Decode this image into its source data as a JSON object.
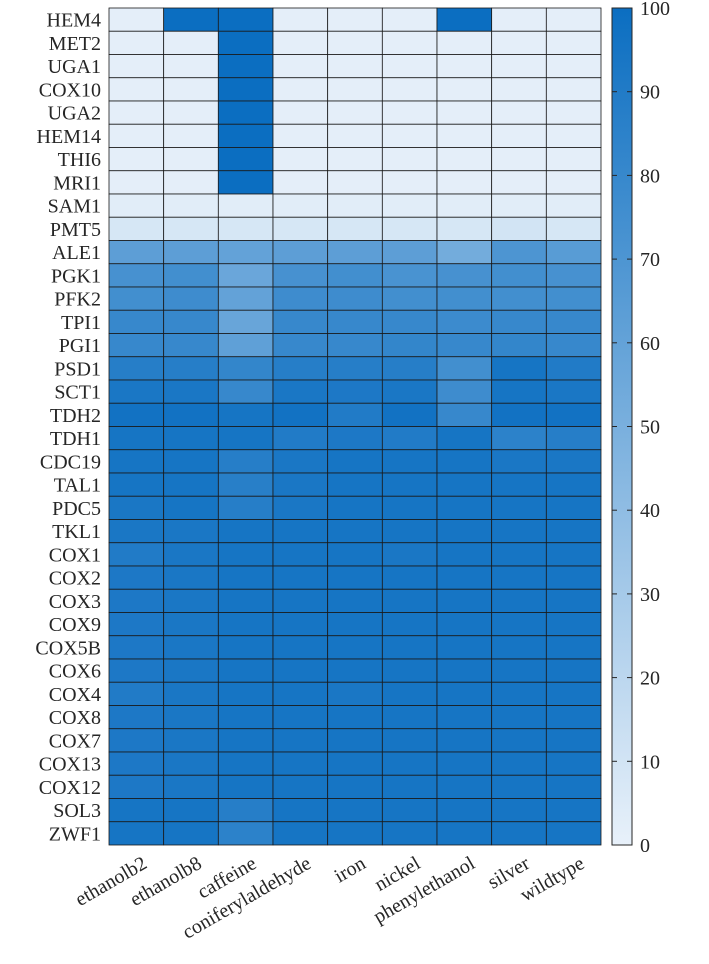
{
  "chart_data": {
    "type": "heatmap",
    "title": "",
    "xlabel": "",
    "ylabel": "",
    "columns": [
      "ethanolb2",
      "ethanolb8",
      "caffeine",
      "coniferylaldehyde",
      "iron",
      "nickel",
      "phenylethanol",
      "silver",
      "wildtype"
    ],
    "rows": [
      "HEM4",
      "MET2",
      "UGA1",
      "COX10",
      "UGA2",
      "HEM14",
      "THI6",
      "MRI1",
      "SAM1",
      "PMT5",
      "ALE1",
      "PGK1",
      "PFK2",
      "TPI1",
      "PGI1",
      "PSD1",
      "SCT1",
      "TDH2",
      "TDH1",
      "CDC19",
      "TAL1",
      "PDC5",
      "TKL1",
      "COX1",
      "COX2",
      "COX3",
      "COX9",
      "COX5B",
      "COX6",
      "COX4",
      "COX8",
      "COX7",
      "COX13",
      "COX12",
      "SOL3",
      "ZWF1"
    ],
    "values": [
      [
        2,
        100,
        100,
        2,
        2,
        2,
        100,
        2,
        2
      ],
      [
        2,
        2,
        100,
        2,
        2,
        2,
        2,
        2,
        2
      ],
      [
        2,
        2,
        100,
        2,
        2,
        2,
        2,
        2,
        2
      ],
      [
        2,
        2,
        100,
        2,
        2,
        2,
        2,
        2,
        2
      ],
      [
        2,
        2,
        100,
        2,
        2,
        2,
        2,
        2,
        2
      ],
      [
        2,
        2,
        100,
        2,
        2,
        2,
        2,
        2,
        2
      ],
      [
        2,
        2,
        100,
        2,
        2,
        2,
        2,
        2,
        2
      ],
      [
        2,
        2,
        100,
        2,
        2,
        2,
        2,
        2,
        2
      ],
      [
        3,
        3,
        3,
        3,
        3,
        3,
        3,
        3,
        3
      ],
      [
        8,
        8,
        8,
        8,
        8,
        8,
        8,
        10,
        8
      ],
      [
        63,
        63,
        60,
        63,
        63,
        63,
        53,
        70,
        65
      ],
      [
        73,
        75,
        57,
        73,
        75,
        72,
        73,
        75,
        73
      ],
      [
        75,
        77,
        60,
        77,
        77,
        75,
        75,
        75,
        75
      ],
      [
        80,
        80,
        58,
        80,
        80,
        80,
        78,
        80,
        80
      ],
      [
        80,
        80,
        62,
        80,
        80,
        82,
        80,
        82,
        80
      ],
      [
        88,
        88,
        82,
        88,
        88,
        88,
        75,
        95,
        90
      ],
      [
        93,
        93,
        80,
        93,
        92,
        93,
        77,
        95,
        93
      ],
      [
        97,
        97,
        95,
        97,
        90,
        97,
        80,
        97,
        97
      ],
      [
        95,
        95,
        95,
        90,
        92,
        90,
        95,
        85,
        88
      ],
      [
        95,
        95,
        88,
        93,
        95,
        95,
        95,
        93,
        93
      ],
      [
        95,
        95,
        87,
        93,
        95,
        95,
        95,
        95,
        95
      ],
      [
        93,
        95,
        88,
        93,
        95,
        95,
        95,
        95,
        95
      ],
      [
        93,
        93,
        95,
        95,
        95,
        95,
        95,
        95,
        95
      ],
      [
        90,
        93,
        95,
        95,
        95,
        93,
        95,
        95,
        95
      ],
      [
        92,
        93,
        95,
        95,
        95,
        95,
        95,
        95,
        95
      ],
      [
        92,
        93,
        95,
        95,
        95,
        95,
        95,
        95,
        95
      ],
      [
        92,
        93,
        95,
        95,
        95,
        95,
        95,
        95,
        95
      ],
      [
        92,
        93,
        95,
        95,
        95,
        95,
        95,
        95,
        95
      ],
      [
        92,
        93,
        95,
        95,
        95,
        95,
        95,
        95,
        95
      ],
      [
        90,
        93,
        95,
        95,
        93,
        95,
        95,
        95,
        95
      ],
      [
        92,
        93,
        95,
        95,
        95,
        95,
        95,
        95,
        95
      ],
      [
        92,
        93,
        95,
        95,
        95,
        95,
        95,
        95,
        95
      ],
      [
        92,
        93,
        95,
        95,
        95,
        95,
        95,
        95,
        95
      ],
      [
        92,
        93,
        95,
        95,
        95,
        95,
        95,
        95,
        95
      ],
      [
        95,
        95,
        88,
        95,
        95,
        95,
        95,
        95,
        95
      ],
      [
        95,
        95,
        85,
        95,
        95,
        95,
        95,
        95,
        95
      ]
    ],
    "colorbar": {
      "range": [
        0,
        100
      ],
      "ticks": [
        "0",
        "10",
        "20",
        "30",
        "40",
        "50",
        "60",
        "70",
        "80",
        "90",
        "100"
      ]
    },
    "colormap": {
      "low": "#e8f1fa",
      "high": "#0b6ec1"
    },
    "grid": true
  }
}
